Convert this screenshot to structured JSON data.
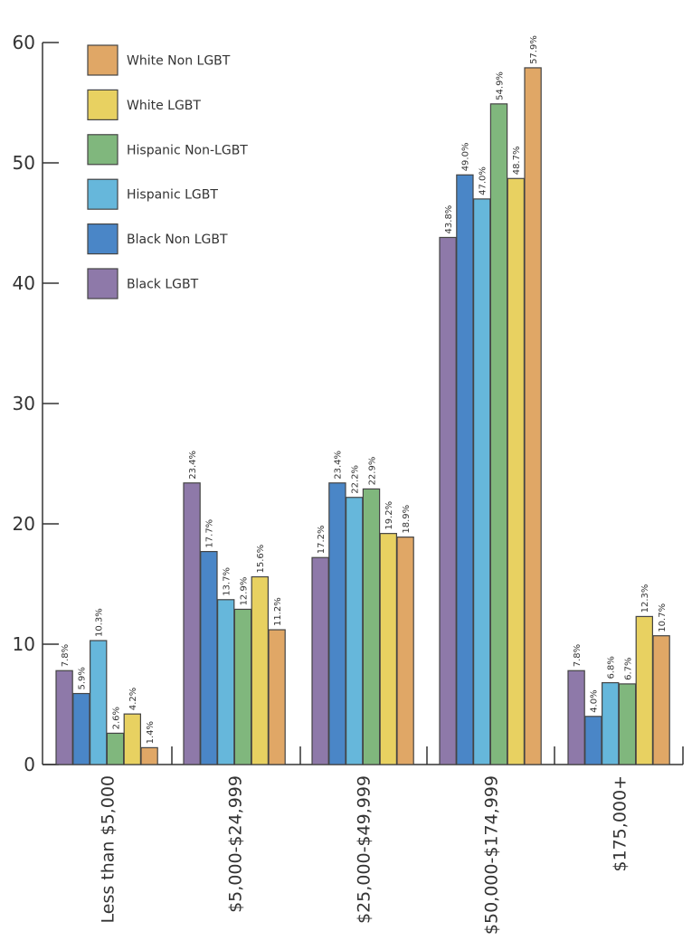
{
  "chart_data": {
    "type": "bar",
    "title": "",
    "xlabel": "",
    "ylabel": "",
    "ylim": [
      0,
      60
    ],
    "yticks": [
      0,
      10,
      20,
      30,
      40,
      50,
      60
    ],
    "grid": false,
    "legend_position": "top-left",
    "categories": [
      "Less than $5,000",
      "$5,000-$24,999",
      "$25,000-$49,999",
      "$50,000-$174,999",
      "$175,000+"
    ],
    "legend_order": [
      "White Non LGBT",
      "White LGBT",
      "Hispanic Non-LGBT",
      "Hispanic LGBT",
      "Black Non LGBT",
      "Black LGBT"
    ],
    "series": [
      {
        "name": "Black LGBT",
        "color": "#8E79A9",
        "values": [
          7.8,
          23.4,
          17.2,
          43.8,
          7.8
        ],
        "labels": [
          "7.8%",
          "23.4%",
          "17.2%",
          "43.8%",
          "7.8%"
        ]
      },
      {
        "name": "Black Non LGBT",
        "color": "#4A86C7",
        "values": [
          5.9,
          17.7,
          23.4,
          49.0,
          4.0
        ],
        "labels": [
          "5.9%",
          "17.7%",
          "23.4%",
          "49.0%",
          "4.0%"
        ]
      },
      {
        "name": "Hispanic LGBT",
        "color": "#66B7DB",
        "values": [
          10.3,
          13.7,
          22.2,
          47.0,
          6.8
        ],
        "labels": [
          "10.3%",
          "13.7%",
          "22.2%",
          "47.0%",
          "6.8%"
        ]
      },
      {
        "name": "Hispanic Non-LGBT",
        "color": "#80B77D",
        "values": [
          2.6,
          12.9,
          22.9,
          54.9,
          6.7
        ],
        "labels": [
          "2.6%",
          "12.9%",
          "22.9%",
          "54.9%",
          "6.7%"
        ]
      },
      {
        "name": "White LGBT",
        "color": "#E8D161",
        "values": [
          4.2,
          15.6,
          19.2,
          48.7,
          12.3
        ],
        "labels": [
          "4.2%",
          "15.6%",
          "19.2%",
          "48.7%",
          "12.3%"
        ]
      },
      {
        "name": "White Non LGBT",
        "color": "#E0A766",
        "values": [
          1.4,
          11.2,
          18.9,
          57.9,
          10.7
        ],
        "labels": [
          "1.4%",
          "11.2%",
          "18.9%",
          "57.9%",
          "10.7%"
        ]
      }
    ]
  }
}
